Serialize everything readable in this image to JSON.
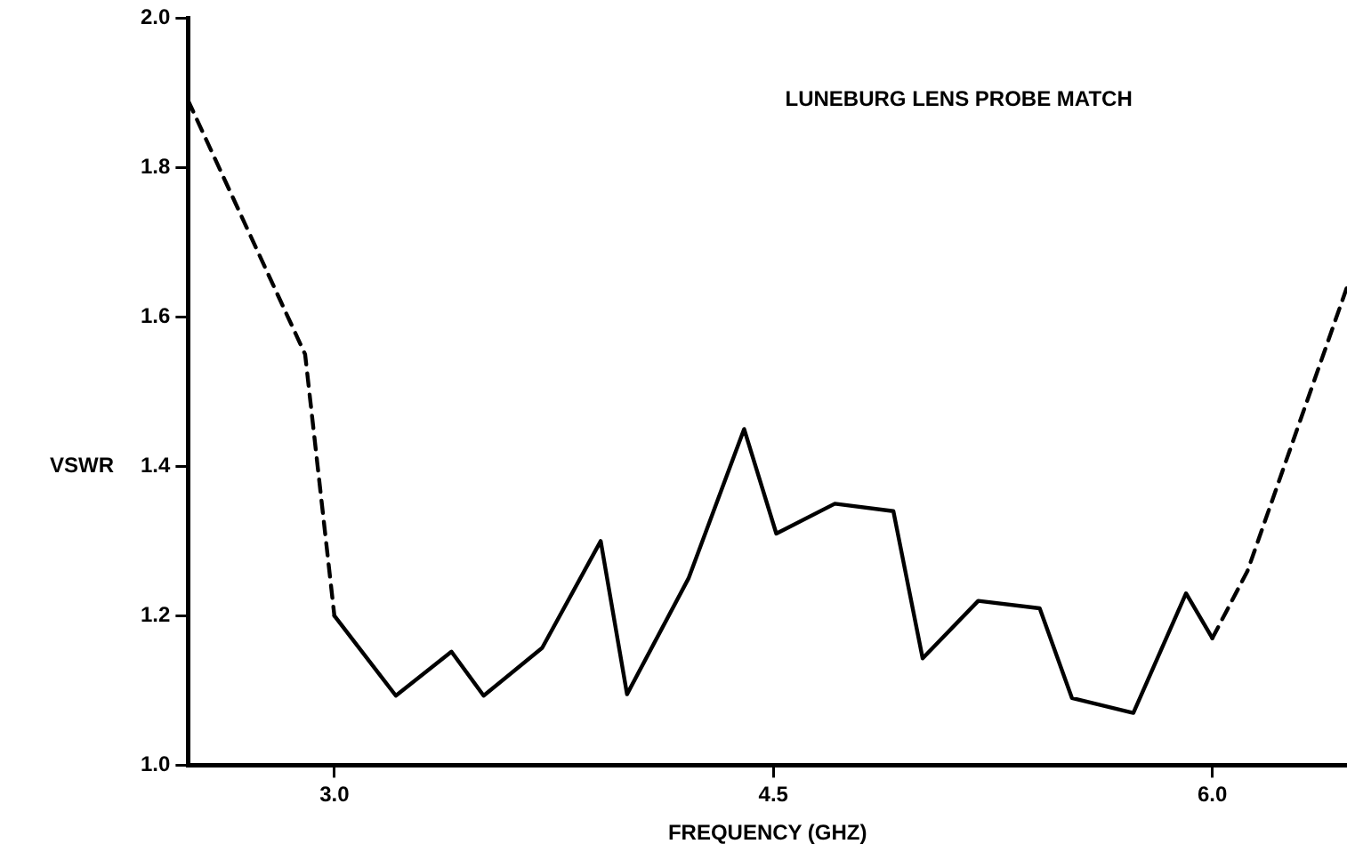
{
  "chart_data": {
    "type": "line",
    "title": "LUNEBURG LENS PROBE MATCH",
    "xlabel": "FREQUENCY (GHZ)",
    "ylabel": "VSWR",
    "xlim": [
      2.5,
      6.46
    ],
    "xticks": [
      {
        "value": 3.0,
        "label": "3.0"
      },
      {
        "value": 4.5,
        "label": "4.5"
      },
      {
        "value": 6.0,
        "label": "6.0"
      }
    ],
    "ylim": [
      1.0,
      2.0
    ],
    "yticks": [
      {
        "value": 1.0,
        "label": "1.0"
      },
      {
        "value": 1.2,
        "label": "1.2"
      },
      {
        "value": 1.4,
        "label": "1.4"
      },
      {
        "value": 1.6,
        "label": "1.6"
      },
      {
        "value": 1.8,
        "label": "1.8"
      },
      {
        "value": 2.0,
        "label": "2.0"
      }
    ],
    "grid": false,
    "legend": false,
    "marker": "none",
    "series": [
      {
        "color": "#000000",
        "line_style": "dashed",
        "x": [
          2.5,
          2.9,
          3.0
        ],
        "values": [
          1.89,
          1.55,
          1.2
        ]
      },
      {
        "color": "#000000",
        "line_style": "solid",
        "x": [
          3.0,
          3.21,
          3.4,
          3.51,
          3.71,
          3.91,
          4.0,
          4.21,
          4.4,
          4.51,
          4.71,
          4.91,
          5.01,
          5.2,
          5.41,
          5.52,
          5.73,
          5.91,
          6.0
        ],
        "values": [
          1.2,
          1.093,
          1.152,
          1.093,
          1.157,
          1.3,
          1.095,
          1.25,
          1.45,
          1.31,
          1.35,
          1.34,
          1.143,
          1.22,
          1.21,
          1.09,
          1.07,
          1.23,
          1.17
        ]
      },
      {
        "color": "#000000",
        "line_style": "dashed",
        "x": [
          6.0,
          6.12,
          6.46
        ],
        "values": [
          1.17,
          1.26,
          1.64
        ]
      }
    ]
  }
}
